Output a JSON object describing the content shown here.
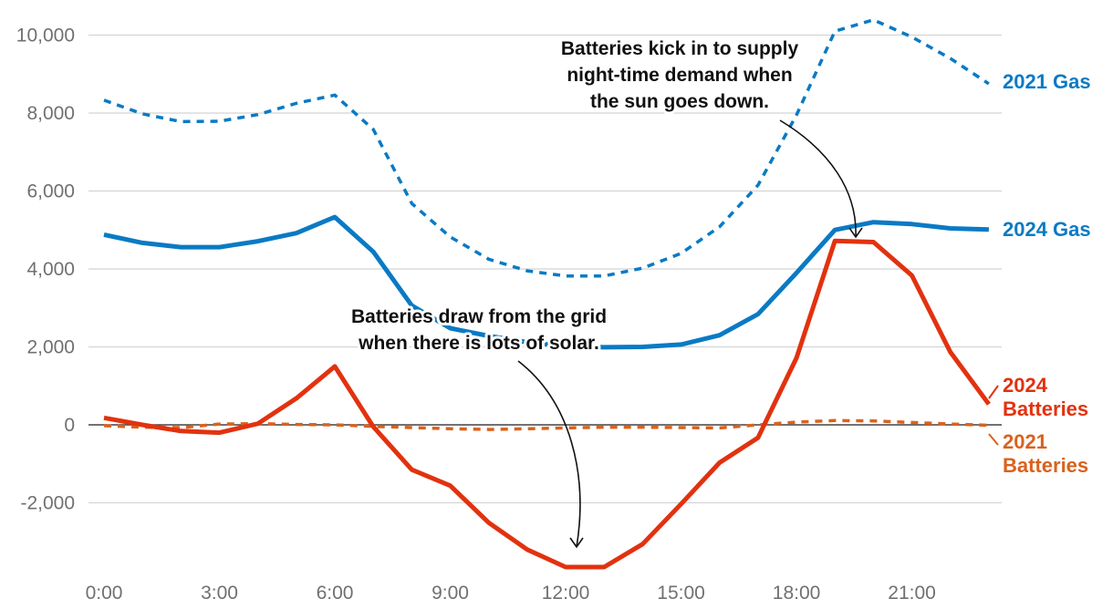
{
  "chart_data": {
    "type": "line",
    "title": "",
    "xlabel": "",
    "ylabel": "",
    "x": [
      0,
      1,
      2,
      3,
      4,
      5,
      6,
      7,
      8,
      9,
      10,
      11,
      12,
      13,
      14,
      15,
      16,
      17,
      18,
      19,
      20,
      21,
      22,
      23
    ],
    "x_tick_values": [
      0,
      3,
      6,
      9,
      12,
      15,
      18,
      21
    ],
    "x_tick_labels": [
      "0:00",
      "3:00",
      "6:00",
      "9:00",
      "12:00",
      "15:00",
      "18:00",
      "21:00"
    ],
    "y_tick_values": [
      -2000,
      0,
      2000,
      4000,
      6000,
      8000,
      10000
    ],
    "y_tick_labels": [
      "-2,000",
      "0",
      "2,000",
      "4,000",
      "6,000",
      "8,000",
      "10,000"
    ],
    "ylim": [
      -3800,
      10500
    ],
    "xlim": [
      0,
      23.2
    ],
    "grid": "horizontal",
    "zero_line": true,
    "series": [
      {
        "name": "2021 Gas",
        "key": "gas2021",
        "label_lines": [
          "2021 Gas"
        ],
        "color": "#0a7ac4",
        "dash": "dashed",
        "width": "thin",
        "values": [
          8330,
          7980,
          7780,
          7790,
          7960,
          8250,
          8460,
          7580,
          5680,
          4820,
          4250,
          3950,
          3820,
          3820,
          4020,
          4400,
          5080,
          6150,
          7950,
          10100,
          10390,
          9950,
          9400,
          8750
        ]
      },
      {
        "name": "2024 Gas",
        "key": "gas2024",
        "label_lines": [
          "2024 Gas"
        ],
        "color": "#0a7ac4",
        "dash": "solid",
        "width": "thick",
        "values": [
          4880,
          4670,
          4560,
          4560,
          4710,
          4920,
          5330,
          4440,
          3060,
          2480,
          2280,
          2120,
          2020,
          1990,
          2000,
          2060,
          2300,
          2840,
          3900,
          5000,
          5200,
          5150,
          5040,
          5010
        ]
      },
      {
        "name": "2024 Batteries",
        "key": "bat2024",
        "label_lines": [
          "2024",
          "Batteries"
        ],
        "color": "#e2320f",
        "dash": "solid",
        "width": "thick",
        "values": [
          180,
          0,
          -160,
          -200,
          30,
          680,
          1500,
          -50,
          -1150,
          -1560,
          -2510,
          -3200,
          -3650,
          -3650,
          -3060,
          -2030,
          -970,
          -330,
          1720,
          4720,
          4690,
          3830,
          1870,
          530
        ]
      },
      {
        "name": "2021 Batteries",
        "key": "bat2021",
        "label_lines": [
          "2021",
          "Batteries"
        ],
        "color": "#d9621e",
        "dash": "dashed",
        "width": "thin",
        "values": [
          -20,
          -60,
          -70,
          20,
          30,
          10,
          0,
          -40,
          -70,
          -100,
          -120,
          -100,
          -80,
          -60,
          -60,
          -70,
          -80,
          0,
          70,
          110,
          100,
          60,
          20,
          -10
        ]
      }
    ],
    "annotations": [
      {
        "key": "evening",
        "lines": [
          "Batteries kick in to supply",
          "night-time demand when",
          "the sun goes down."
        ]
      },
      {
        "key": "midday",
        "lines": [
          "Batteries draw from the grid",
          "when there is lots of solar."
        ]
      }
    ]
  }
}
